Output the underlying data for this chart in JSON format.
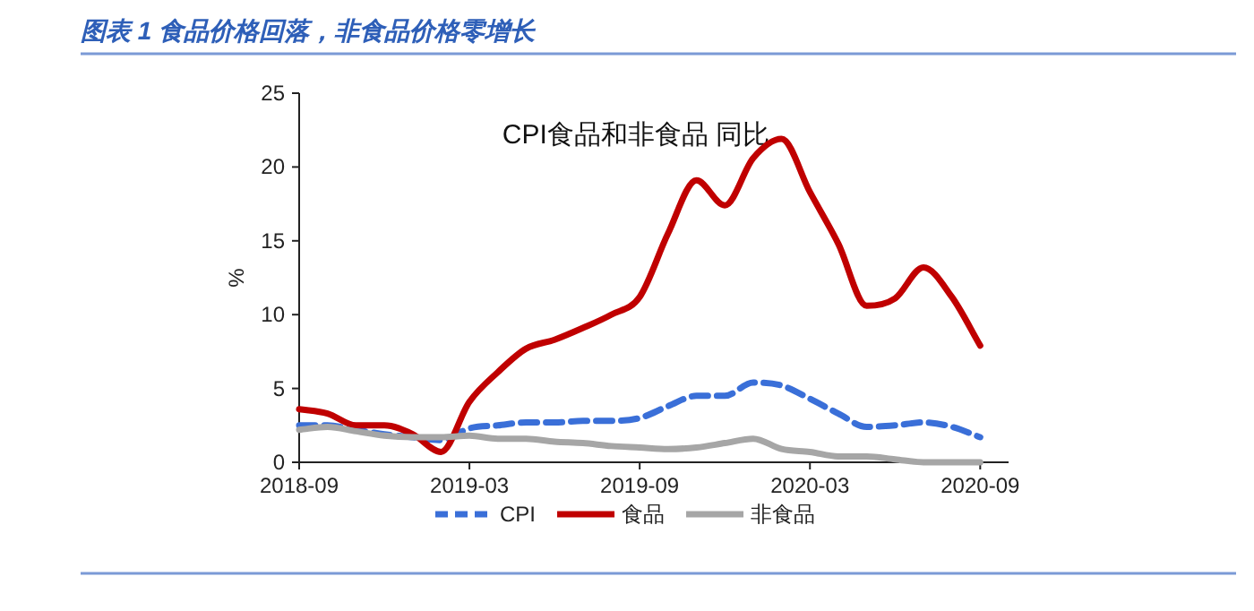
{
  "chart_data": {
    "type": "line",
    "title": "图表 1 食品价格回落，非食品价格零增长",
    "subtitle": "CPI食品和非食品 同比",
    "ylabel": "%",
    "x": [
      "2018-09",
      "2018-10",
      "2018-11",
      "2018-12",
      "2019-01",
      "2019-02",
      "2019-03",
      "2019-04",
      "2019-05",
      "2019-06",
      "2019-07",
      "2019-08",
      "2019-09",
      "2019-10",
      "2019-11",
      "2019-12",
      "2020-01",
      "2020-02",
      "2020-03",
      "2020-04",
      "2020-05",
      "2020-06",
      "2020-07",
      "2020-08",
      "2020-09"
    ],
    "series": [
      {
        "name": "CPI",
        "color": "#3a6fd8",
        "line_style": "dashed",
        "values": [
          2.5,
          2.5,
          2.2,
          1.9,
          1.7,
          1.5,
          2.3,
          2.5,
          2.7,
          2.7,
          2.8,
          2.8,
          3.0,
          3.8,
          4.5,
          4.5,
          5.4,
          5.2,
          4.3,
          3.3,
          2.4,
          2.5,
          2.7,
          2.4,
          1.7
        ]
      },
      {
        "name": "食品",
        "color": "#c00000",
        "line_style": "solid",
        "values": [
          3.6,
          3.3,
          2.5,
          2.5,
          1.9,
          0.7,
          4.1,
          6.1,
          7.7,
          8.3,
          9.1,
          10.0,
          11.2,
          15.5,
          19.1,
          17.4,
          20.6,
          21.9,
          18.3,
          14.8,
          10.6,
          11.1,
          13.2,
          11.2,
          7.9
        ]
      },
      {
        "name": "非食品",
        "color": "#a6a6a6",
        "line_style": "solid",
        "values": [
          2.2,
          2.4,
          2.1,
          1.8,
          1.7,
          1.7,
          1.8,
          1.6,
          1.6,
          1.4,
          1.3,
          1.1,
          1.0,
          0.9,
          1.0,
          1.3,
          1.6,
          0.9,
          0.7,
          0.4,
          0.4,
          0.2,
          0.0,
          0.0,
          0.0
        ]
      }
    ],
    "xlim": [
      "2018-09",
      "2020-10"
    ],
    "xticks": [
      "2018-09",
      "2019-03",
      "2019-09",
      "2020-03",
      "2020-09"
    ],
    "ylim": [
      0,
      25
    ],
    "yticks": [
      0,
      5,
      10,
      15,
      20,
      25
    ],
    "grid": false,
    "legend": "bottom",
    "marker": "none"
  }
}
